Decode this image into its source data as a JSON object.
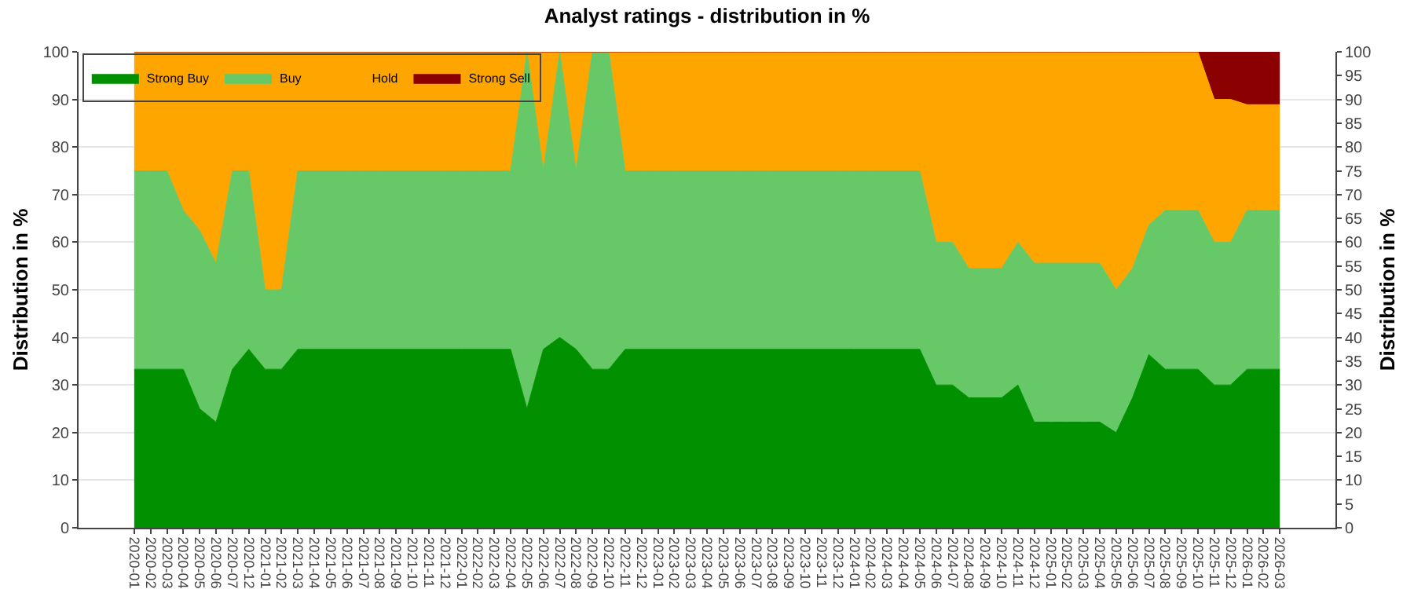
{
  "chart_data": {
    "type": "area",
    "title": "Analyst ratings - distribution in %",
    "ylabel": "Distribution in %",
    "y2label": "Distribution in %",
    "categories": [
      "2020-01",
      "2020-02",
      "2020-03",
      "2020-04",
      "2020-05",
      "2020-06",
      "2020-07",
      "2020-12",
      "2021-01",
      "2021-02",
      "2021-03",
      "2021-04",
      "2021-05",
      "2021-06",
      "2021-07",
      "2021-08",
      "2021-09",
      "2021-10",
      "2021-11",
      "2021-12",
      "2022-01",
      "2022-02",
      "2022-03",
      "2022-04",
      "2022-05",
      "2022-06",
      "2022-07",
      "2022-08",
      "2022-09",
      "2022-10",
      "2022-11",
      "2022-12",
      "2023-01",
      "2023-02",
      "2023-03",
      "2023-04",
      "2023-05",
      "2023-06",
      "2023-07",
      "2023-08",
      "2023-09",
      "2023-10",
      "2023-11",
      "2023-12",
      "2024-01",
      "2024-02",
      "2024-03",
      "2024-04",
      "2024-05",
      "2024-06",
      "2024-07",
      "2024-08",
      "2024-09",
      "2024-10",
      "2024-11",
      "2024-12",
      "2025-01",
      "2025-02",
      "2025-03",
      "2025-04",
      "2025-05",
      "2025-06",
      "2025-07",
      "2025-08",
      "2025-09",
      "2025-10",
      "2025-11",
      "2025-12",
      "2026-01",
      "2026-02",
      "2026-03"
    ],
    "series": [
      {
        "name": "Strong Buy",
        "color": "#009000",
        "values": [
          33.3,
          33.3,
          33.3,
          33.3,
          25,
          22.2,
          33.3,
          37.5,
          33.3,
          33.3,
          37.5,
          37.5,
          37.5,
          37.5,
          37.5,
          37.5,
          37.5,
          37.5,
          37.5,
          37.5,
          37.5,
          37.5,
          37.5,
          37.5,
          25,
          37.5,
          40,
          37.5,
          33.3,
          33.3,
          37.5,
          37.5,
          37.5,
          37.5,
          37.5,
          37.5,
          37.5,
          37.5,
          37.5,
          37.5,
          37.5,
          37.5,
          37.5,
          37.5,
          37.5,
          37.5,
          37.5,
          37.5,
          37.5,
          30,
          30,
          27.3,
          27.3,
          27.3,
          30,
          22.2,
          22.2,
          22.2,
          22.2,
          22.2,
          20,
          27.3,
          36.4,
          33.3,
          33.3,
          33.3,
          30,
          30,
          33.3,
          33.3,
          33.3
        ]
      },
      {
        "name": "Buy",
        "color": "#66c866",
        "values": [
          41.7,
          41.7,
          41.7,
          33.4,
          37.5,
          33.4,
          41.7,
          37.5,
          16.7,
          16.7,
          37.5,
          37.5,
          37.5,
          37.5,
          37.5,
          37.5,
          37.5,
          37.5,
          37.5,
          37.5,
          37.5,
          37.5,
          37.5,
          37.5,
          75,
          37.5,
          60,
          37.5,
          66.7,
          66.7,
          37.5,
          37.5,
          37.5,
          37.5,
          37.5,
          37.5,
          37.5,
          37.5,
          37.5,
          37.5,
          37.5,
          37.5,
          37.5,
          37.5,
          37.5,
          37.5,
          37.5,
          37.5,
          37.5,
          30,
          30,
          27.2,
          27.2,
          27.2,
          30,
          33.4,
          33.4,
          33.4,
          33.4,
          33.4,
          30,
          27.2,
          27.2,
          33.4,
          33.4,
          33.4,
          30,
          30,
          33.4,
          33.4,
          33.4
        ]
      },
      {
        "name": "Hold",
        "color": "#ffa500",
        "values": [
          25,
          25,
          25,
          33.3,
          37.5,
          44.4,
          25,
          25,
          50,
          50,
          25,
          25,
          25,
          25,
          25,
          25,
          25,
          25,
          25,
          25,
          25,
          25,
          25,
          25,
          0,
          25,
          0,
          25,
          0,
          0,
          25,
          25,
          25,
          25,
          25,
          25,
          25,
          25,
          25,
          25,
          25,
          25,
          25,
          25,
          25,
          25,
          25,
          25,
          25,
          40,
          40,
          45.5,
          45.5,
          45.5,
          40,
          44.4,
          44.4,
          44.4,
          44.4,
          44.4,
          50,
          45.5,
          36.4,
          33.3,
          33.3,
          33.3,
          30,
          30,
          22.2,
          22.2,
          22.2
        ]
      },
      {
        "name": "Strong Sell",
        "color": "#8b0000",
        "values": [
          0,
          0,
          0,
          0,
          0,
          0,
          0,
          0,
          0,
          0,
          0,
          0,
          0,
          0,
          0,
          0,
          0,
          0,
          0,
          0,
          0,
          0,
          0,
          0,
          0,
          0,
          0,
          0,
          0,
          0,
          0,
          0,
          0,
          0,
          0,
          0,
          0,
          0,
          0,
          0,
          0,
          0,
          0,
          0,
          0,
          0,
          0,
          0,
          0,
          0,
          0,
          0,
          0,
          0,
          0,
          0,
          0,
          0,
          0,
          0,
          0,
          0,
          0,
          0,
          0,
          0,
          10,
          10,
          11.1,
          11.1,
          11.1
        ]
      }
    ],
    "stacked": true,
    "ylim": [
      0,
      100
    ],
    "yticks": [
      0,
      10,
      20,
      30,
      40,
      50,
      60,
      70,
      80,
      90,
      100
    ],
    "y2lim": [
      0,
      100
    ],
    "y2ticks": [
      0,
      5,
      10,
      15,
      20,
      25,
      30,
      35,
      40,
      45,
      50,
      55,
      60,
      65,
      70,
      75,
      80,
      85,
      90,
      95,
      100
    ],
    "grid": "y",
    "legend": "top left"
  }
}
